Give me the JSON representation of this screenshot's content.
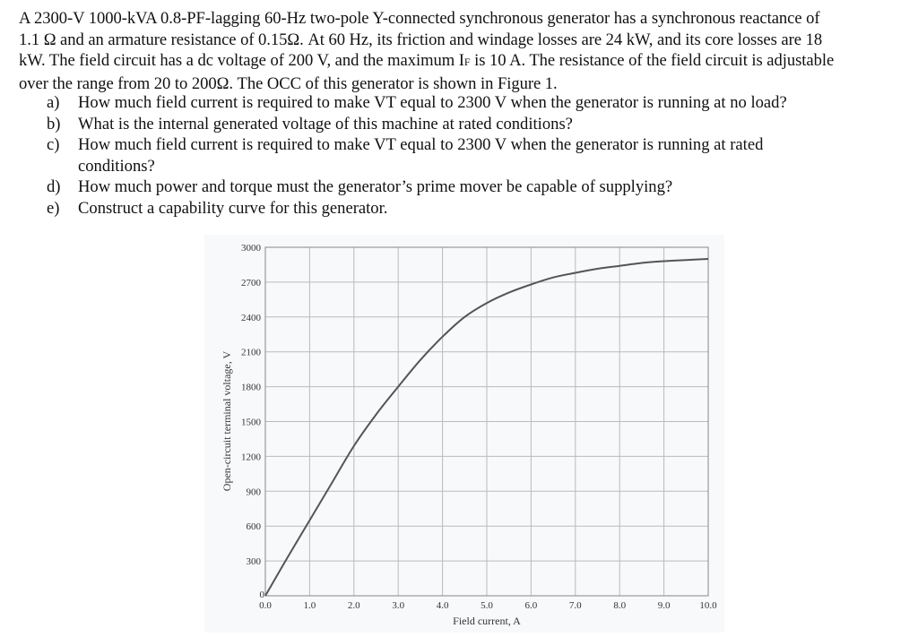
{
  "problem": {
    "intro_lines": [
      "A 2300-V 1000-kVA 0.8-PF-lagging 60-Hz two-pole Y-connected synchronous generator has a synchronous reactance of",
      "1.1 Ω and an armature resistance of 0.15Ω. At 60 Hz, its friction and windage losses are 24 kW, and its core losses are 18",
      "kW. The field circuit has a dc voltage of 200 V, and the maximum I",
      "over the range from 20 to 200Ω. The OCC of this generator is shown in Figure 1."
    ],
    "line3_sub": "F",
    "line3_tail": " is 10 A. The resistance of the field circuit is adjustable",
    "questions": [
      {
        "label": "a)",
        "text": "How much field current is required to make VT equal to 2300 V when the generator is running at no load?"
      },
      {
        "label": "b)",
        "text": "What is the internal generated voltage of this machine at rated conditions?"
      },
      {
        "label": "c)",
        "text": "How much field current is required to make VT equal to 2300 V when the generator is running at rated",
        "text_cont": "conditions?"
      },
      {
        "label": "d)",
        "text": "How much power and torque must the generator’s prime mover be capable of supplying?"
      },
      {
        "label": "e)",
        "text": "Construct a capability curve for this generator."
      }
    ]
  },
  "chart_data": {
    "type": "line",
    "title": "",
    "xlabel": "Field current, A",
    "ylabel": "Open-circuit terminal voltage, V",
    "xlim": [
      0,
      10
    ],
    "ylim": [
      0,
      3000
    ],
    "grid": true,
    "x_ticks": [
      "0.0",
      "1.0",
      "2.0",
      "3.0",
      "4.0",
      "5.0",
      "6.0",
      "7.0",
      "8.0",
      "9.0",
      "10.0"
    ],
    "y_ticks": [
      "0",
      "300",
      "600",
      "900",
      "1200",
      "1500",
      "1800",
      "2100",
      "2400",
      "2700",
      "3000"
    ],
    "series": [
      {
        "name": "OCC",
        "x": [
          0.0,
          0.5,
          1.0,
          1.5,
          2.0,
          2.5,
          3.0,
          3.5,
          4.0,
          4.5,
          5.0,
          5.5,
          6.0,
          6.5,
          7.0,
          7.5,
          8.0,
          8.5,
          9.0,
          9.5,
          10.0
        ],
        "values": [
          0,
          330,
          650,
          970,
          1290,
          1560,
          1800,
          2030,
          2230,
          2400,
          2520,
          2610,
          2680,
          2740,
          2780,
          2815,
          2840,
          2865,
          2880,
          2890,
          2900
        ]
      }
    ],
    "line_color": "#555555"
  }
}
